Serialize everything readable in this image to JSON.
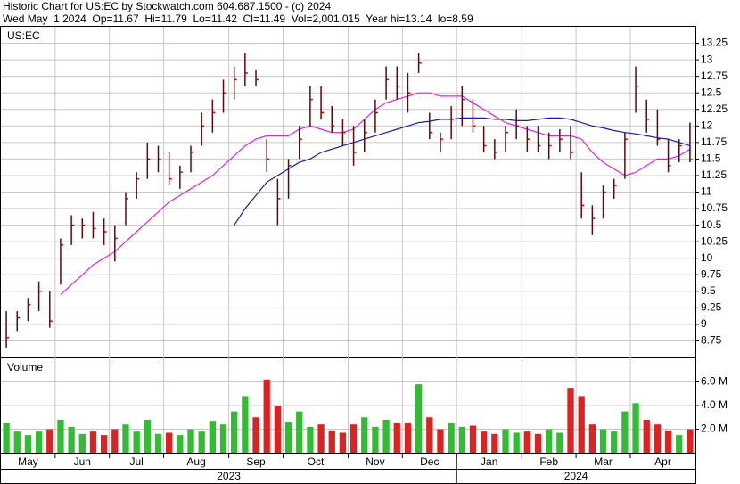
{
  "chart_data": {
    "type": "ohlc",
    "title": "Historic Chart for US:EC by Stockwatch.com 604.687.1500 - (c) 2024",
    "subtitle": "Wed May  1 2024  Op=11.67  Hi=11.79  Lo=11.42  Cl=11.49  Vol=2,001,015  Year hi=13.14  lo=8.59",
    "symbol": "US:EC",
    "categories": [
      "May",
      "May",
      "May",
      "May",
      "May",
      "Jun",
      "Jun",
      "Jun",
      "Jun",
      "Jun",
      "Jul",
      "Jul",
      "Jul",
      "Jul",
      "Jul",
      "Aug",
      "Aug",
      "Aug",
      "Aug",
      "Aug",
      "Aug",
      "Sep",
      "Sep",
      "Sep",
      "Sep",
      "Sep",
      "Oct",
      "Oct",
      "Oct",
      "Oct",
      "Oct",
      "Oct",
      "Nov",
      "Nov",
      "Nov",
      "Nov",
      "Nov",
      "Dec",
      "Dec",
      "Dec",
      "Dec",
      "Dec",
      "Jan",
      "Jan",
      "Jan",
      "Jan",
      "Jan",
      "Jan",
      "Feb",
      "Feb",
      "Feb",
      "Feb",
      "Feb",
      "Mar",
      "Mar",
      "Mar",
      "Mar",
      "Mar",
      "Apr",
      "Apr",
      "Apr",
      "Apr",
      "Apr",
      "Apr"
    ],
    "groups": [
      "2023",
      "2023",
      "2023",
      "2023",
      "2023",
      "2023",
      "2023",
      "2023",
      "2023",
      "2023",
      "2023",
      "2023",
      "2023",
      "2023",
      "2023",
      "2023",
      "2023",
      "2023",
      "2023",
      "2023",
      "2023",
      "2023",
      "2023",
      "2023",
      "2023",
      "2023",
      "2023",
      "2023",
      "2023",
      "2023",
      "2023",
      "2023",
      "2023",
      "2023",
      "2023",
      "2023",
      "2023",
      "2023",
      "2023",
      "2023",
      "2023",
      "2023",
      "2024",
      "2024",
      "2024",
      "2024",
      "2024",
      "2024",
      "2024",
      "2024",
      "2024",
      "2024",
      "2024",
      "2024",
      "2024",
      "2024",
      "2024",
      "2024",
      "2024",
      "2024",
      "2024",
      "2024",
      "2024",
      "2024"
    ],
    "high": [
      9.2,
      9.2,
      9.4,
      9.65,
      9.5,
      10.3,
      10.65,
      10.6,
      10.7,
      10.6,
      10.5,
      11.0,
      11.3,
      11.75,
      11.7,
      11.6,
      11.4,
      11.7,
      12.2,
      12.4,
      12.7,
      12.9,
      13.1,
      12.85,
      11.8,
      11.2,
      11.5,
      12.0,
      12.6,
      12.6,
      12.3,
      12.1,
      12.0,
      12.1,
      12.4,
      12.9,
      12.9,
      12.8,
      13.1,
      12.2,
      11.9,
      12.3,
      12.6,
      12.4,
      12.0,
      11.8,
      12.0,
      12.25,
      12.0,
      12.0,
      11.9,
      11.95,
      12.0,
      11.3,
      10.8,
      11.1,
      11.2,
      11.9,
      12.9,
      12.4,
      12.25,
      11.8,
      11.8,
      12.05
    ],
    "low": [
      8.65,
      8.9,
      9.05,
      9.2,
      8.95,
      9.6,
      10.2,
      10.3,
      10.3,
      10.2,
      9.95,
      10.5,
      10.9,
      11.2,
      11.3,
      11.1,
      11.05,
      11.3,
      11.7,
      11.9,
      12.2,
      12.4,
      12.6,
      12.6,
      11.3,
      10.5,
      10.9,
      11.5,
      12.0,
      12.1,
      11.9,
      11.7,
      11.4,
      11.6,
      11.9,
      12.4,
      12.4,
      12.2,
      12.8,
      11.8,
      11.6,
      11.8,
      12.0,
      11.9,
      11.6,
      11.5,
      11.6,
      11.8,
      11.6,
      11.6,
      11.5,
      11.6,
      11.5,
      10.6,
      10.35,
      10.6,
      10.9,
      11.2,
      12.2,
      11.9,
      11.7,
      11.3,
      11.45,
      11.45
    ],
    "close": [
      8.8,
      9.1,
      9.3,
      9.5,
      9.05,
      10.2,
      10.5,
      10.5,
      10.45,
      10.4,
      10.3,
      10.9,
      11.2,
      11.5,
      11.5,
      11.2,
      11.3,
      11.6,
      12.0,
      12.2,
      12.5,
      12.7,
      12.8,
      12.7,
      11.5,
      10.9,
      11.4,
      11.8,
      12.4,
      12.2,
      12.0,
      11.9,
      11.6,
      11.9,
      12.2,
      12.7,
      12.6,
      12.5,
      12.95,
      11.9,
      11.8,
      12.1,
      12.4,
      12.0,
      11.7,
      11.6,
      11.9,
      12.0,
      11.8,
      11.7,
      11.7,
      11.8,
      11.6,
      10.8,
      10.6,
      11.0,
      11.1,
      11.8,
      12.6,
      12.1,
      11.8,
      11.4,
      11.7,
      11.49
    ],
    "bar_color": "#5a0a0a",
    "close_color": "#cc0000",
    "up_color": "#33bb33",
    "down_color": "#dd2222",
    "moving_averages": [
      {
        "color": "#dd22dd",
        "values": [
          null,
          null,
          null,
          null,
          null,
          9.45,
          9.6,
          9.75,
          9.9,
          10.0,
          10.1,
          10.25,
          10.4,
          10.55,
          10.7,
          10.85,
          10.95,
          11.05,
          11.15,
          11.25,
          11.4,
          11.55,
          11.7,
          11.8,
          11.85,
          11.85,
          11.85,
          11.95,
          12.0,
          11.95,
          11.9,
          11.9,
          11.95,
          12.1,
          12.25,
          12.35,
          12.4,
          12.45,
          12.5,
          12.5,
          12.45,
          12.45,
          12.45,
          12.35,
          12.25,
          12.15,
          12.05,
          12.0,
          11.95,
          11.9,
          11.85,
          11.85,
          11.85,
          11.8,
          11.6,
          11.45,
          11.35,
          11.25,
          11.3,
          11.4,
          11.5,
          11.5,
          11.55,
          11.65
        ]
      },
      {
        "color": "#1a1aaa",
        "values": [
          null,
          null,
          null,
          null,
          null,
          null,
          null,
          null,
          null,
          null,
          null,
          null,
          null,
          null,
          null,
          null,
          null,
          null,
          null,
          null,
          null,
          10.5,
          10.75,
          10.95,
          11.15,
          11.25,
          11.35,
          11.45,
          11.5,
          11.6,
          11.65,
          11.7,
          11.75,
          11.8,
          11.85,
          11.9,
          11.95,
          12.0,
          12.05,
          12.07,
          12.1,
          12.1,
          12.12,
          12.12,
          12.12,
          12.1,
          12.1,
          12.08,
          12.08,
          12.1,
          12.12,
          12.12,
          12.1,
          12.05,
          12.0,
          11.97,
          11.93,
          11.9,
          11.88,
          11.85,
          11.82,
          11.8,
          11.75,
          11.7
        ]
      }
    ],
    "ylim": [
      8.5,
      13.5
    ],
    "yticks": [
      8.75,
      9.0,
      9.25,
      9.5,
      9.75,
      10.0,
      10.25,
      10.5,
      10.75,
      11.0,
      11.25,
      11.5,
      11.75,
      12.0,
      12.25,
      12.5,
      12.75,
      13.0,
      13.25
    ],
    "grid": true,
    "volume": {
      "label": "Volume",
      "values": [
        2500000,
        1800000,
        1500000,
        1800000,
        2000000,
        2800000,
        2200000,
        1600000,
        1800000,
        1500000,
        2000000,
        2400000,
        1800000,
        2800000,
        1600000,
        1700000,
        1500000,
        2000000,
        1800000,
        2700000,
        2400000,
        3500000,
        4800000,
        3000000,
        6200000,
        4000000,
        2600000,
        3500000,
        2200000,
        2400000,
        1900000,
        1700000,
        2400000,
        3000000,
        2200000,
        2800000,
        2500000,
        2500000,
        5800000,
        3000000,
        2000000,
        2500000,
        2200000,
        2300000,
        1800000,
        1600000,
        2000000,
        1700000,
        1800000,
        1600000,
        2000000,
        1700000,
        5500000,
        4800000,
        2400000,
        2000000,
        1800000,
        3500000,
        4200000,
        2800000,
        2400000,
        1900000,
        1500000,
        2000000
      ],
      "ylim": [
        0,
        8000000
      ],
      "yticks": [
        {
          "value": 2000000,
          "label": "2.0 M"
        },
        {
          "value": 4000000,
          "label": "4.0 M"
        },
        {
          "value": 6000000,
          "label": "6.0 M"
        }
      ]
    }
  }
}
